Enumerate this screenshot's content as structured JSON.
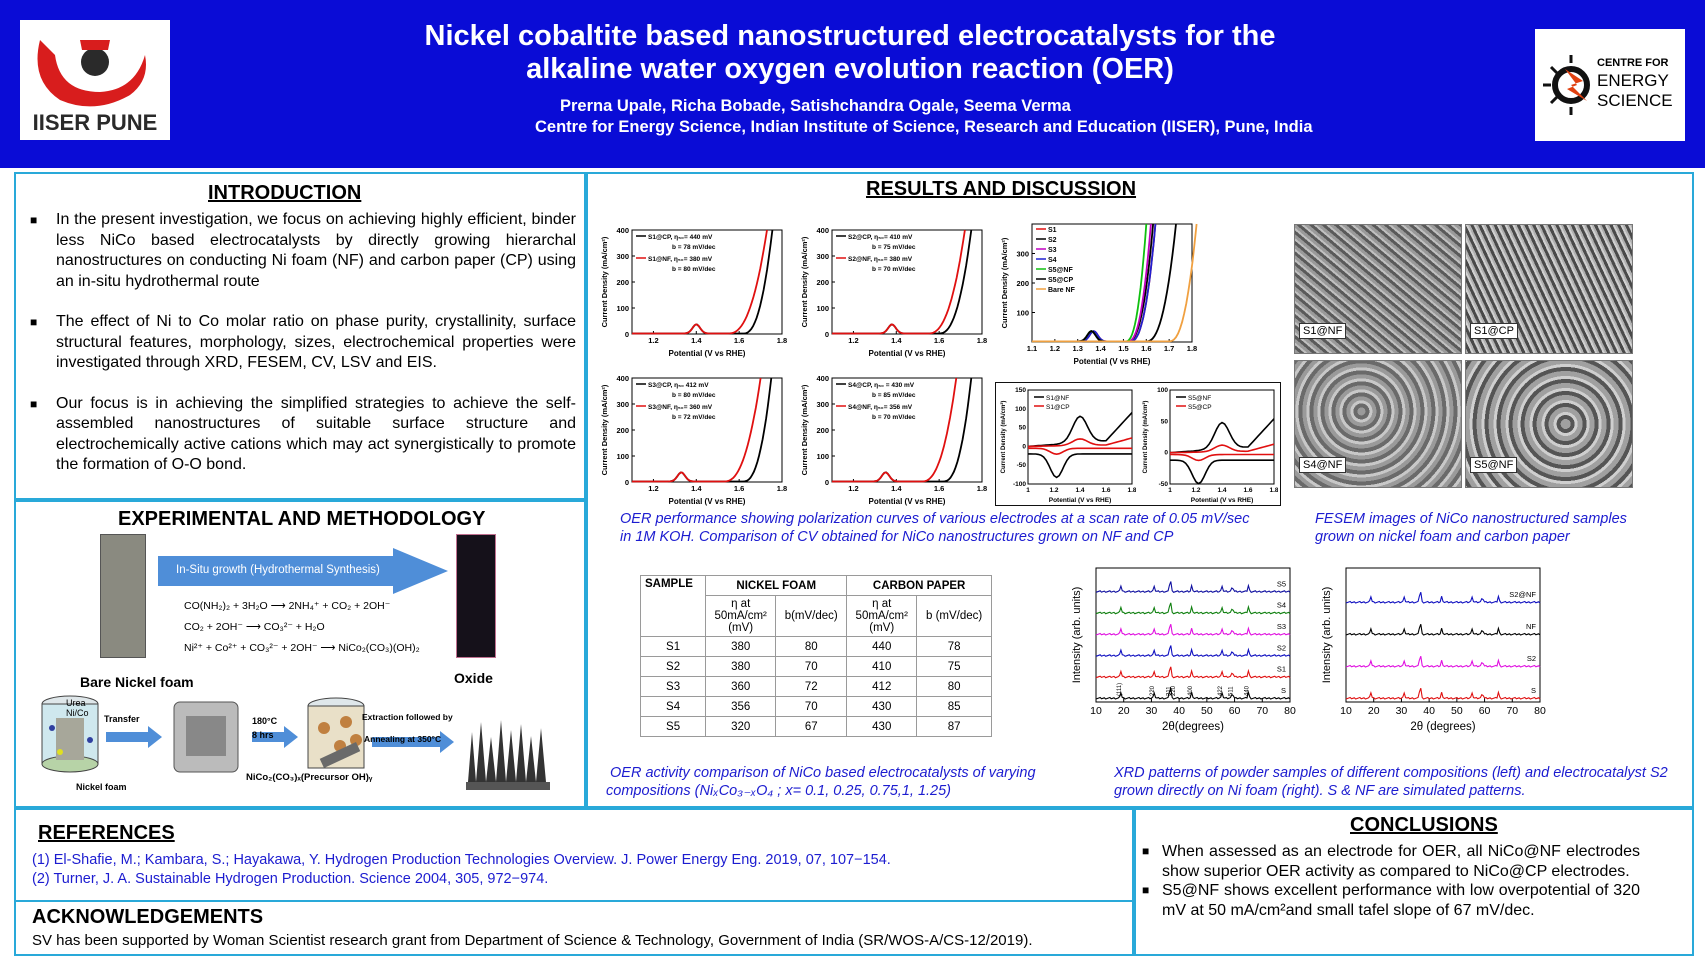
{
  "header": {
    "title_line1": "Nickel cobaltite based nanostructured electrocatalysts for the",
    "title_line2": "alkaline water oxygen evolution reaction (OER)",
    "authors": "Prerna Upale, Richa Bobade, Satishchandra Ogale, Seema Verma",
    "affiliation": "Centre for Energy Science, Indian Institute of Science, Research and Education (IISER), Pune, India",
    "logo_left": "IISER PUNE",
    "logo_right_lines": [
      "CENTRE FOR",
      "ENERGY",
      "SCIENCE"
    ]
  },
  "colors": {
    "header_bg": "#0a0cd6",
    "panel_border": "#29a9d9",
    "caption": "#1c1cd0",
    "red": "#e01010",
    "black": "#000000"
  },
  "introduction": {
    "heading": "INTRODUCTION",
    "bullets": [
      "In the present investigation, we focus on achieving highly efficient, binder less NiCo based electrocatalysts by directly growing hierarchal nanostructures on conducting Ni foam (NF) and carbon paper (CP) using an in-situ hydrothermal route",
      "The effect of Ni to Co molar ratio on phase purity, crystallinity, surface structural features, morphology, sizes, electrochemical properties were investigated through XRD, FESEM, CV, LSV and EIS.",
      "Our focus is in achieving the simplified strategies to achieve the self-assembled nanostructures of suitable surface structure and electrochemically active cations which may act synergistically to promote the formation of O-O bond."
    ]
  },
  "experimental": {
    "heading": "EXPERIMENTAL AND METHODOLOGY",
    "arrow_label": "In-Situ growth (Hydrothermal Synthesis)",
    "eq1": "CO(NH₂)₂ + 3H₂O ⟶ 2NH₄⁺ + CO₂ + 2OH⁻",
    "eq2": "CO₂ + 2OH⁻ ⟶ CO₃²⁻ + H₂O",
    "eq3": "Ni²⁺ + Co²⁺ + CO₃²⁻ + 2OH⁻ ⟶ NiCo₂(CO₃)(OH)₂",
    "bare_label": "Bare Nickel foam",
    "oxide_label": "Oxide",
    "transfer": "Transfer",
    "temp": "180°C",
    "hrs": "8 hrs",
    "extraction": "Extraction followed by",
    "annealing": "Annealing at 350°C",
    "nickel_foam": "Nickel foam",
    "precursor": "NiCo₂(CO₃)ₓ(Precursor OH)ᵧ",
    "urea": "Urea",
    "nico": "Ni/Co"
  },
  "results": {
    "heading": "RESULTS AND DISCUSSION",
    "caption_oer": "OER performance showing polarization curves of various electrodes at a scan rate of 0.05 mV/sec in 1M KOH. Comparison of CV obtained for NiCo nanostructures grown on NF and CP",
    "caption_fesem": "FESEM images of NiCo nanostructured samples grown on nickel foam and carbon paper",
    "caption_table_a": "OER activity comparison of NiCo based electrocatalysts of varying",
    "caption_table_b": "compositions (NiₓCo₃₋ₓO₄ ; x= 0.1, 0.25, 0.75,1, 1.25)",
    "caption_xrd": "XRD patterns of powder samples of different compositions (left) and electrocatalyst S2 grown directly on Ni foam (right). S & NF are simulated patterns.",
    "sem_labels": [
      "S1@NF",
      "S1@CP",
      "S4@NF",
      "S5@NF"
    ]
  },
  "chart_data": [
    {
      "type": "line",
      "ylabel": "Current Density (mA/cm²)",
      "xlabel": "Potential (V vs RHE)",
      "xlim": [
        1.1,
        1.8
      ],
      "ylim": [
        0,
        400
      ],
      "xticks": [
        1.2,
        1.4,
        1.6,
        1.8
      ],
      "yticks": [
        0,
        100,
        200,
        300,
        400
      ],
      "series": [
        {
          "name": "S1@CP",
          "legend": "S1@CP, η₅₀= 440 mV",
          "b": "b = 78 mV/dec",
          "color": "#000000",
          "onset": 1.62,
          "end": 1.755,
          "peak": 1.4
        },
        {
          "name": "S1@NF",
          "legend": "S1@NF, η₅₀= 380 mV",
          "b": "b = 80 mV/dec",
          "color": "#e01010",
          "onset": 1.55,
          "end": 1.73,
          "peak": 1.4
        }
      ]
    },
    {
      "type": "line",
      "ylabel": "Current Density (mA/cm²)",
      "xlabel": "Potential (V vs RHE)",
      "xlim": [
        1.1,
        1.8
      ],
      "ylim": [
        0,
        400
      ],
      "xticks": [
        1.2,
        1.4,
        1.6,
        1.8
      ],
      "yticks": [
        0,
        100,
        200,
        300,
        400
      ],
      "series": [
        {
          "name": "S2@CP",
          "legend": "S2@CP, η₅₀= 410 mV",
          "b": "b = 75 mV/dec",
          "color": "#000000",
          "onset": 1.6,
          "end": 1.75,
          "peak": 1.38
        },
        {
          "name": "S2@NF",
          "legend": "S2@NF, η₅₀= 380 mV",
          "b": "b = 70 mV/dec",
          "color": "#e01010",
          "onset": 1.55,
          "end": 1.72,
          "peak": 1.38
        }
      ]
    },
    {
      "type": "line",
      "ylabel": "Current Density (mA/cm²)",
      "xlabel": "Potential (V vs RHE)",
      "xlim": [
        1.1,
        1.8
      ],
      "ylim": [
        0,
        400
      ],
      "xticks": [
        1.2,
        1.4,
        1.6,
        1.8
      ],
      "yticks": [
        0,
        100,
        200,
        300,
        400
      ],
      "series": [
        {
          "name": "S3@CP",
          "legend": "S3@CP, η₅₀ 412 mV",
          "b": "b = 80 mV/dec",
          "color": "#000000",
          "onset": 1.62,
          "end": 1.75,
          "peak": 1.33
        },
        {
          "name": "S3@NF",
          "legend": "S3@NF, η₅₀= 360 mV",
          "b": "b = 72 mV/dec",
          "color": "#e01010",
          "onset": 1.53,
          "end": 1.7,
          "peak": 1.33
        }
      ]
    },
    {
      "type": "line",
      "ylabel": "Current Density (mA/cm²)",
      "xlabel": "Potential (V vs RHE)",
      "xlim": [
        1.1,
        1.8
      ],
      "ylim": [
        0,
        400
      ],
      "xticks": [
        1.2,
        1.4,
        1.6,
        1.8
      ],
      "yticks": [
        0,
        100,
        200,
        300,
        400
      ],
      "series": [
        {
          "name": "S4@CP",
          "legend": "S4@CP, η₅₀ = 430 mV",
          "b": "b = 85 mV/dec",
          "color": "#000000",
          "onset": 1.62,
          "end": 1.75,
          "peak": 1.35
        },
        {
          "name": "S4@NF",
          "legend": "S4@NF, η₅₀= 356 mV",
          "b": "b = 70 mV/dec",
          "color": "#e01010",
          "onset": 1.52,
          "end": 1.68,
          "peak": 1.35
        }
      ]
    },
    {
      "type": "line",
      "ylabel": "Current Density (mA/cm²)",
      "xlabel": "Potential (V vs RHE)",
      "xlim": [
        1.1,
        1.8
      ],
      "ylim": [
        0,
        400
      ],
      "xticks": [
        1.1,
        1.2,
        1.3,
        1.4,
        1.5,
        1.6,
        1.7,
        1.8
      ],
      "yticks": [
        100,
        200,
        300
      ],
      "series": [
        {
          "name": "S1",
          "color": "#e01010",
          "onset": 1.53,
          "end": 1.64,
          "peak": 1.37
        },
        {
          "name": "S2",
          "color": "#000000",
          "onset": 1.52,
          "end": 1.63,
          "peak": 1.36
        },
        {
          "name": "S3",
          "color": "#c000c0",
          "onset": 1.52,
          "end": 1.62,
          "peak": 1.36
        },
        {
          "name": "S4",
          "color": "#2020d0",
          "onset": 1.53,
          "end": 1.64,
          "peak": 1.37
        },
        {
          "name": "S5@NF",
          "color": "#10c010",
          "onset": 1.51,
          "end": 1.6,
          "peak": 1.36
        },
        {
          "name": "S5@CP",
          "color": "#000000",
          "onset": 1.6,
          "end": 1.73,
          "peak": 1.36
        },
        {
          "name": "Bare NF",
          "color": "#f0a040",
          "onset": 1.7,
          "end": 1.82,
          "peak": 0
        }
      ]
    },
    {
      "type": "line",
      "ylabel": "Current Density (mA/cm²)",
      "xlabel": "Potential (V vs RHE)",
      "xlim": [
        1.0,
        1.8
      ],
      "ylim": [
        -100,
        150
      ],
      "xticks": [
        1.0,
        1.2,
        1.4,
        1.6,
        1.8
      ],
      "yticks": [
        -100,
        -50,
        0,
        50,
        100,
        150
      ],
      "series": [
        {
          "name": "S1@NF",
          "color": "#000000"
        },
        {
          "name": "S1@CP",
          "color": "#e01010"
        }
      ]
    },
    {
      "type": "line",
      "ylabel": "Current Density (mA/cm²)",
      "xlabel": "Potential (V vs RHE)",
      "xlim": [
        1.0,
        1.8
      ],
      "ylim": [
        -50,
        100
      ],
      "xticks": [
        1.0,
        1.2,
        1.4,
        1.6,
        1.8
      ],
      "yticks": [
        -50,
        0,
        50,
        100
      ],
      "series": [
        {
          "name": "S5@NF",
          "color": "#000000"
        },
        {
          "name": "S5@CP",
          "color": "#e01010"
        }
      ]
    },
    {
      "type": "line",
      "ylabel": "Intensity (arb. units)",
      "xlabel": "2θ(degrees)",
      "xlim": [
        10,
        80
      ],
      "xticks": [
        10,
        20,
        30,
        40,
        50,
        60,
        70,
        80
      ],
      "series": [
        {
          "name": "S5",
          "color": "#1010a0"
        },
        {
          "name": "S4",
          "color": "#108010"
        },
        {
          "name": "S3",
          "color": "#e010e0"
        },
        {
          "name": "S2",
          "color": "#1010c0"
        },
        {
          "name": "S1",
          "color": "#e01010"
        },
        {
          "name": "S",
          "color": "#000000"
        }
      ],
      "peak_labels": [
        "(111)",
        "220",
        "311",
        "220",
        "400",
        "422",
        "511",
        "440"
      ]
    },
    {
      "type": "line",
      "ylabel": "Intensity (arb. units)",
      "xlabel": "2θ (degrees)",
      "xlim": [
        10,
        80
      ],
      "xticks": [
        10,
        20,
        30,
        40,
        50,
        60,
        70,
        80
      ],
      "series": [
        {
          "name": "S2@NF",
          "color": "#1010c0"
        },
        {
          "name": "NF",
          "color": "#000000"
        },
        {
          "name": "S2",
          "color": "#e010e0"
        },
        {
          "name": "S",
          "color": "#e01010"
        }
      ]
    }
  ],
  "table": {
    "headers": [
      "SAMPLE",
      "NICKEL FOAM",
      "CARBON PAPER"
    ],
    "subheaders": [
      "η at 50mA/cm² (mV)",
      "b(mV/dec)",
      "η at 50mA/cm² (mV)",
      "b (mV/dec)"
    ],
    "rows": [
      [
        "S1",
        "380",
        "80",
        "440",
        "78"
      ],
      [
        "S2",
        "380",
        "70",
        "410",
        "75"
      ],
      [
        "S3",
        "360",
        "72",
        "412",
        "80"
      ],
      [
        "S4",
        "356",
        "70",
        "430",
        "85"
      ],
      [
        "S5",
        "320",
        "67",
        "430",
        "87"
      ]
    ]
  },
  "references": {
    "heading": "REFERENCES",
    "items": [
      "(1) El-Shafie, M.; Kambara, S.; Hayakawa, Y. Hydrogen Production Technologies Overview. J. Power Energy Eng. 2019, 07, 107−154.",
      "(2) Turner, J. A. Sustainable Hydrogen Production. Science 2004, 305, 972−974."
    ]
  },
  "acknowledgements": {
    "heading": "ACKNOWLEDGEMENTS",
    "text": "SV has been supported by Woman Scientist research grant from Department of Science &  Technology, Government of India (SR/WOS-A/CS-12/2019)."
  },
  "conclusions": {
    "heading": "CONCLUSIONS",
    "bullets": [
      "When assessed as an electrode for OER, all NiCo@NF electrodes show superior OER activity as compared to NiCo@CP electrodes.",
      "S5@NF shows excellent performance with low overpotential of 320 mV at 50  mA/cm²and small tafel slope of 67 mV/dec."
    ]
  }
}
